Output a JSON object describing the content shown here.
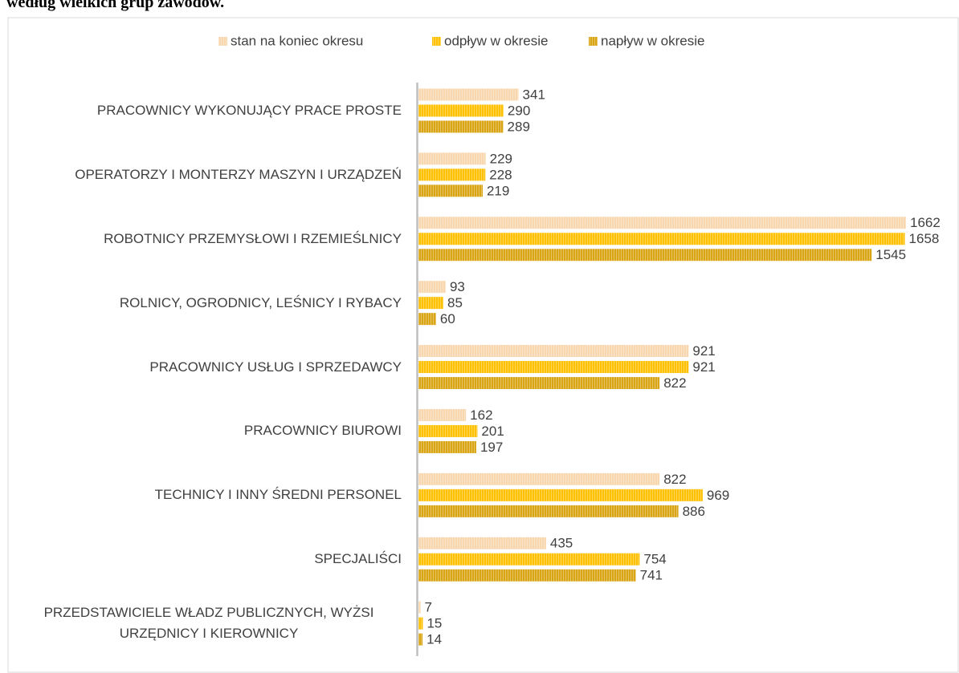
{
  "chart_data": {
    "type": "barh",
    "title": "według wielkich grup zawodów.",
    "categories": [
      "PRACOWNICY WYKONUJĄCY PRACE PROSTE",
      "OPERATORZY I MONTERZY MASZYN I URZĄDZEŃ",
      "ROBOTNICY PRZEMYSŁOWI I RZEMIEŚLNICY",
      "ROLNICY, OGRODNICY, LEŚNICY I RYBACY",
      "PRACOWNICY USŁUG I SPRZEDAWCY",
      "PRACOWNICY BIUROWI",
      "TECHNICY I INNY ŚREDNI PERSONEL",
      "SPECJALIŚCI",
      "PRZEDSTAWICIELE WŁADZ PUBLICZNYCH, WYŻSI URZĘDNICY I KIEROWNICY"
    ],
    "series": [
      {
        "name": "stan na koniec okresu",
        "color": "#f9d7ae",
        "values": [
          341,
          229,
          1662,
          93,
          921,
          162,
          822,
          435,
          7
        ]
      },
      {
        "name": "odpływ w okresie",
        "color": "#ffc000",
        "values": [
          290,
          228,
          1658,
          85,
          921,
          201,
          969,
          754,
          15
        ]
      },
      {
        "name": "napływ w okresie",
        "color": "#d9a514",
        "values": [
          289,
          219,
          1545,
          60,
          822,
          197,
          886,
          741,
          14
        ]
      }
    ],
    "legend": "top"
  }
}
